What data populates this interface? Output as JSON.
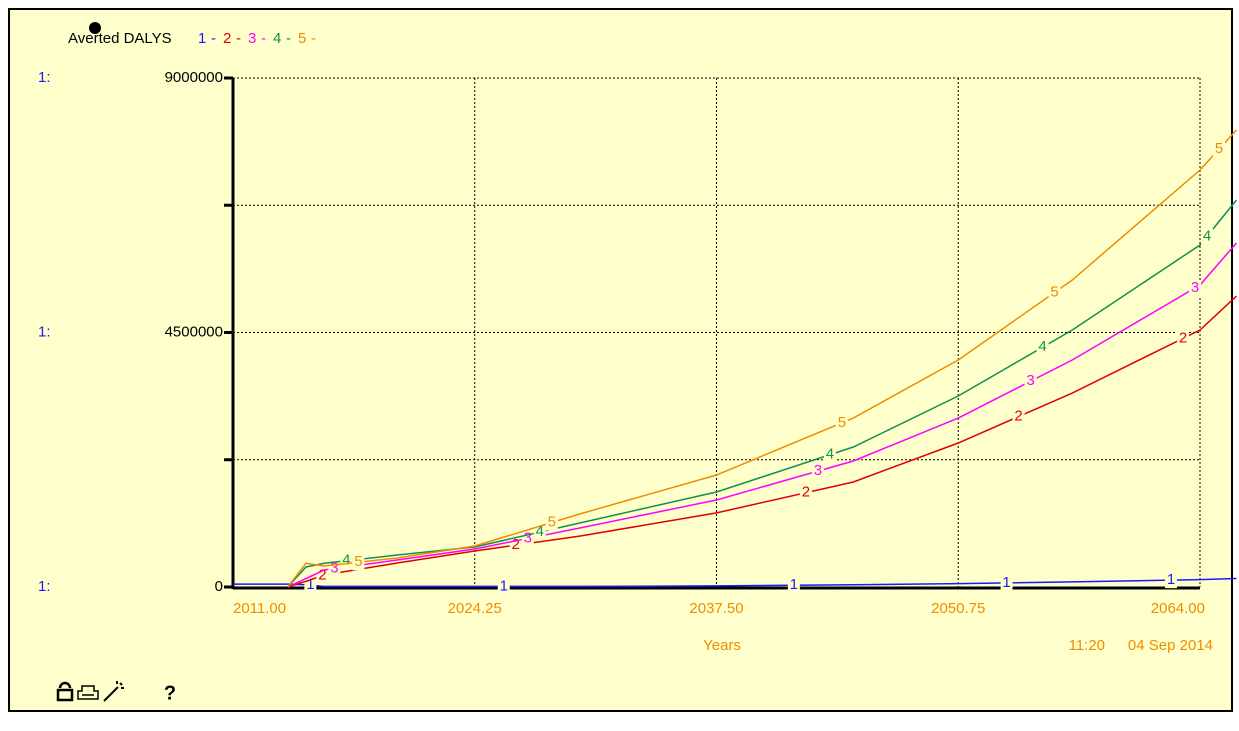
{
  "chart_data": {
    "type": "line",
    "title": "Averted DALYS",
    "axis_series_label": "1:",
    "x_label": "Years",
    "time": "11:20",
    "date": "04 Sep 2014",
    "help": "?",
    "x": [
      2011,
      2014,
      2015,
      2016,
      2020,
      2024.25,
      2030,
      2037.5,
      2045,
      2050.75,
      2057,
      2064,
      2066
    ],
    "series": [
      {
        "name": "1",
        "color": "#1a1aff",
        "values": [
          50000,
          50000,
          40000,
          10000,
          10000,
          10000,
          10000,
          20000,
          40000,
          60000,
          90000,
          130000,
          150000
        ]
      },
      {
        "name": "2",
        "color": "#e00000",
        "values": [
          null,
          0,
          100000,
          212000,
          424000,
          636000,
          900000,
          1310000,
          1857000,
          2546000,
          3430000,
          4544000,
          5145000
        ]
      },
      {
        "name": "3",
        "color": "#ff00ff",
        "values": [
          null,
          0,
          150000,
          300000,
          477000,
          672000,
          1043000,
          1538000,
          2228000,
          2988000,
          4014000,
          5340000,
          6083000
        ]
      },
      {
        "name": "4",
        "color": "#109050",
        "values": [
          null,
          0,
          354000,
          420000,
          566000,
          707000,
          1132000,
          1680000,
          2475000,
          3377000,
          4544000,
          6047000,
          6843000
        ]
      },
      {
        "name": "5",
        "color": "#f08c00",
        "values": [
          null,
          0,
          420000,
          371000,
          513000,
          725000,
          1291000,
          1980000,
          2988000,
          4014000,
          5428000,
          7373000,
          8081000
        ]
      }
    ],
    "xlim": [
      2011,
      2066.1
    ],
    "xticks": [
      {
        "value": 2011,
        "label": "2011.00"
      },
      {
        "value": 2024.25,
        "label": "2024.25"
      },
      {
        "value": 2037.5,
        "label": "2037.50"
      },
      {
        "value": 2050.75,
        "label": "2050.75"
      },
      {
        "value": 2064,
        "label": "2064.00"
      }
    ],
    "ylim": [
      0,
      9000000
    ],
    "yticks": [
      0,
      4500000,
      9000000
    ],
    "minor_yticks": [
      2250000,
      6750000
    ],
    "grid": true
  }
}
